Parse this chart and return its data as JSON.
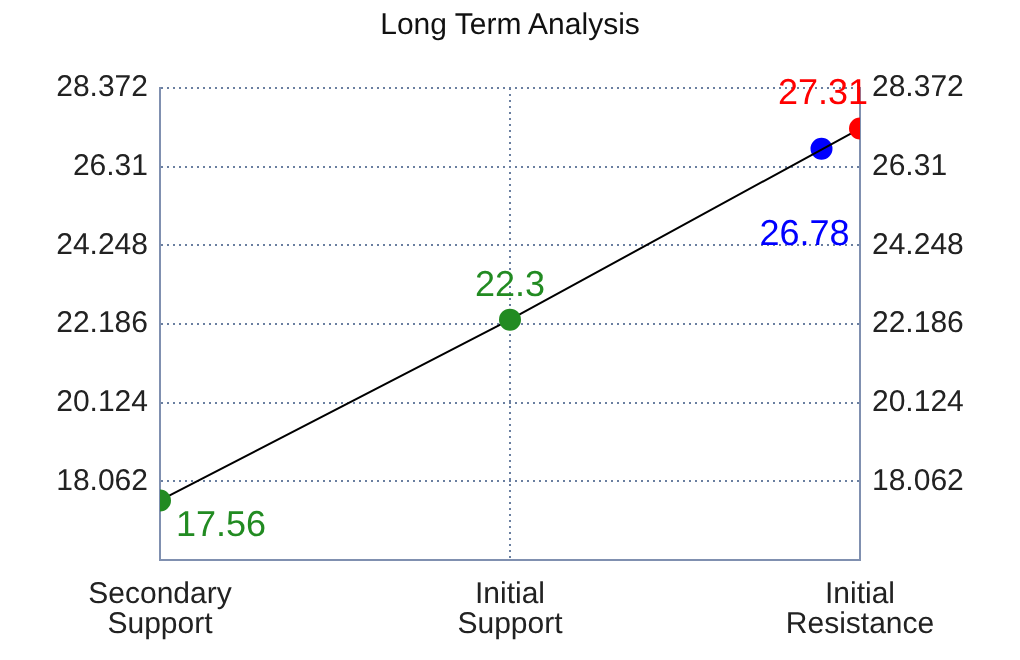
{
  "chart_data": {
    "type": "line",
    "title": "Long Term Analysis",
    "categories": [
      "Secondary Support",
      "Initial Support",
      "Initial Resistance"
    ],
    "series": [
      {
        "color": "#000000",
        "values": [
          17.56,
          22.3,
          27.31
        ],
        "colors": [
          "#228b22",
          "#228b22",
          "#ff0000"
        ]
      },
      {
        "type": "scatter",
        "x": [
          "Initial Resistance"
        ],
        "values": [
          26.78
        ],
        "color": "#0000ff"
      }
    ],
    "ylim": [
      16,
      28.372
    ],
    "yticks": [
      {
        "value": 16,
        "label": null
      },
      18.062,
      20.124,
      22.186,
      24.248,
      26.31,
      28.372
    ],
    "y2lim": [
      16,
      28.372
    ],
    "y2ticks": [
      18.062,
      20.124,
      22.186,
      24.248,
      26.31,
      28.372
    ],
    "grid": true,
    "marker": "circle",
    "line_style": "solid",
    "data_labels": true,
    "legend": false
  }
}
